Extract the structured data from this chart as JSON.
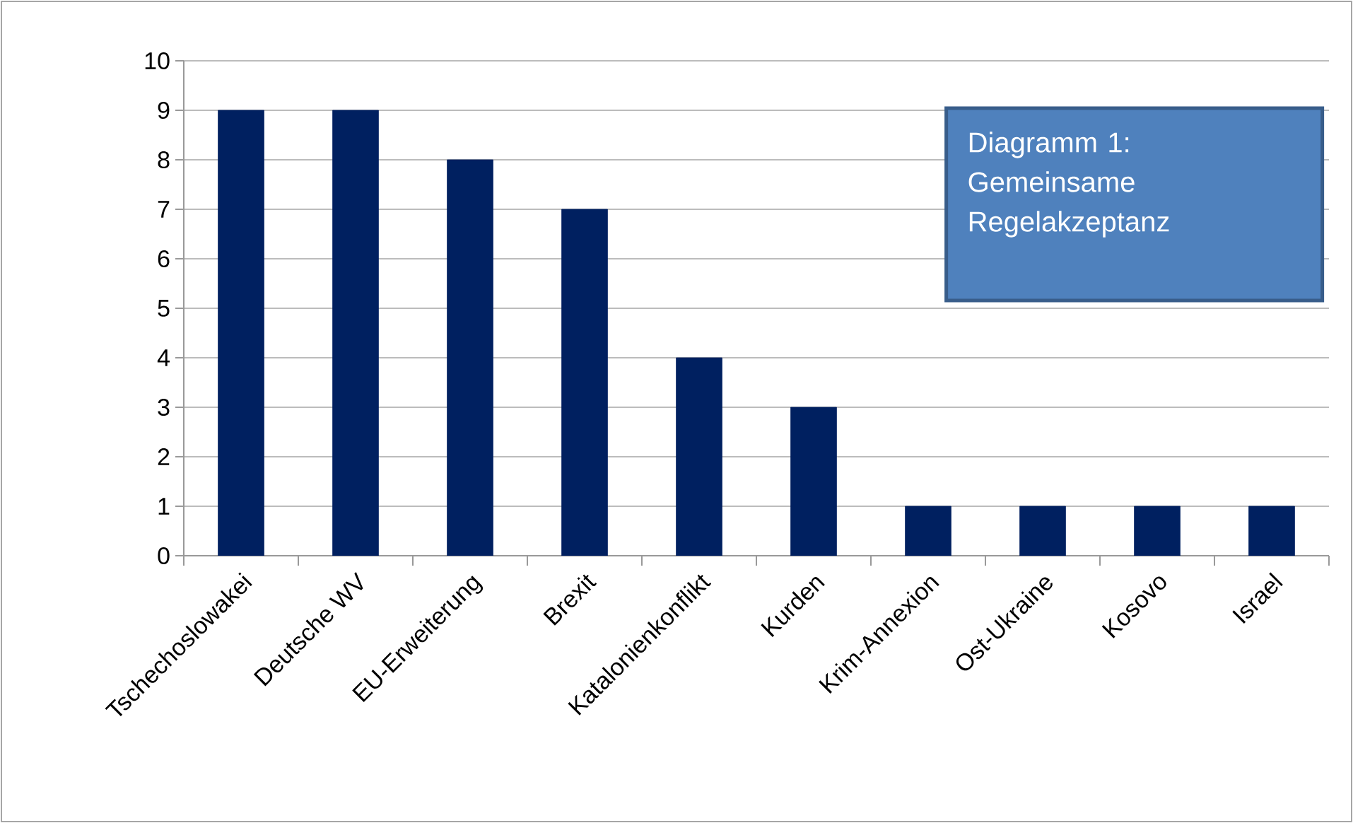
{
  "chart_data": {
    "type": "bar",
    "title": "Diagramm 1: Gemeinsame Regelakzeptanz",
    "categories": [
      "Tschechoslowakei",
      "Deutsche WV",
      "EU-Erweiterung",
      "Brexit",
      "Katalonienkonflikt",
      "Kurden",
      "Krim-Annexion",
      "Ost-Ukraine",
      "Kosovo",
      "Israel"
    ],
    "values": [
      9,
      9,
      8,
      7,
      4,
      3,
      1,
      1,
      1,
      1
    ],
    "color": "#002060",
    "ylim": [
      0,
      10
    ],
    "yticks": [
      0,
      1,
      2,
      3,
      4,
      5,
      6,
      7,
      8,
      9,
      10
    ],
    "grid": "y"
  }
}
